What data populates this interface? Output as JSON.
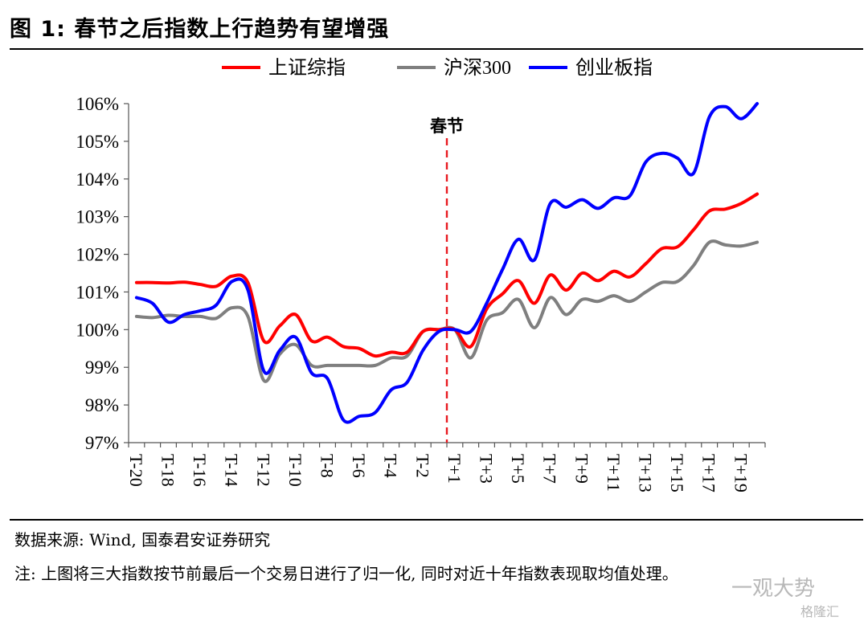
{
  "figure": {
    "title": "图 1:  春节之后指数上行趋势有望增强",
    "source": "数据来源:  Wind, 国泰君安证券研究",
    "note": "注:  上图将三大指数按节前最后一个交易日进行了归一化, 同时对近十年指数表现取均值处理。",
    "watermark": "一观大势",
    "watermark2": "格隆汇"
  },
  "chart_data": {
    "type": "line",
    "title": "",
    "xlabel": "",
    "ylabel": "",
    "x": [
      "T-20",
      "T-19",
      "T-18",
      "T-17",
      "T-16",
      "T-15",
      "T-14",
      "T-13",
      "T-12",
      "T-11",
      "T-10",
      "T-9",
      "T-8",
      "T-7",
      "T-6",
      "T-5",
      "T-4",
      "T-3",
      "T-2",
      "T-1",
      "T+1",
      "T+2",
      "T+3",
      "T+4",
      "T+5",
      "T+6",
      "T+7",
      "T+8",
      "T+9",
      "T+10",
      "T+11",
      "T+12",
      "T+13",
      "T+14",
      "T+15",
      "T+16",
      "T+17",
      "T+18",
      "T+19",
      "T+20"
    ],
    "x_tick_labels": [
      "T-20",
      "T-18",
      "T-16",
      "T-14",
      "T-12",
      "T-10",
      "T-8",
      "T-6",
      "T-4",
      "T-2",
      "T+1",
      "T+3",
      "T+5",
      "T+7",
      "T+9",
      "T+11",
      "T+13",
      "T+15",
      "T+17",
      "T+19"
    ],
    "ylim": [
      0.97,
      1.06
    ],
    "y_ticks": [
      "97%",
      "98%",
      "99%",
      "100%",
      "101%",
      "102%",
      "103%",
      "104%",
      "105%",
      "106%"
    ],
    "legend_position": "top-center",
    "annotation": {
      "label": "春节",
      "between": [
        "T-1",
        "T+1"
      ],
      "color": "#e8191f"
    },
    "series": [
      {
        "name": "上证综指",
        "color": "#ff0000",
        "values": [
          1.0125,
          1.0125,
          1.0124,
          1.0126,
          1.012,
          1.0115,
          1.0142,
          1.0125,
          0.997,
          1.001,
          1.004,
          0.997,
          0.998,
          0.9955,
          0.995,
          0.993,
          0.994,
          0.994,
          0.9995,
          1.0,
          1.0,
          0.9955,
          1.0055,
          1.0095,
          1.013,
          1.007,
          1.0145,
          1.0105,
          1.015,
          1.013,
          1.0155,
          1.014,
          1.0175,
          1.0215,
          1.022,
          1.0265,
          1.0315,
          1.032,
          1.0335,
          1.036
        ]
      },
      {
        "name": "沪深300",
        "color": "#7f7f7f",
        "values": [
          1.0035,
          1.0032,
          1.0038,
          1.0035,
          1.0035,
          1.003,
          1.0058,
          1.0035,
          0.9865,
          0.9935,
          0.996,
          0.9905,
          0.9905,
          0.9905,
          0.9905,
          0.9905,
          0.9925,
          0.993,
          0.9995,
          1.0,
          1.0,
          0.9925,
          1.0025,
          1.0045,
          1.008,
          1.0005,
          1.0085,
          1.004,
          1.008,
          1.0075,
          1.009,
          1.0075,
          1.01,
          1.0125,
          1.0128,
          1.017,
          1.0232,
          1.0225,
          1.0222,
          1.0232
        ]
      },
      {
        "name": "创业板指",
        "color": "#0000ff",
        "values": [
          1.0085,
          1.007,
          1.002,
          1.004,
          1.005,
          1.0065,
          1.0128,
          1.0105,
          0.989,
          0.9945,
          0.998,
          0.9885,
          0.987,
          0.976,
          0.977,
          0.978,
          0.984,
          0.986,
          0.9945,
          0.9995,
          1.0,
          0.9995,
          1.007,
          1.016,
          1.024,
          1.0185,
          1.0335,
          1.0325,
          1.0345,
          1.0322,
          1.035,
          1.0355,
          1.0445,
          1.0468,
          1.0455,
          1.0415,
          1.0565,
          1.0592,
          1.056,
          1.06
        ]
      }
    ]
  }
}
